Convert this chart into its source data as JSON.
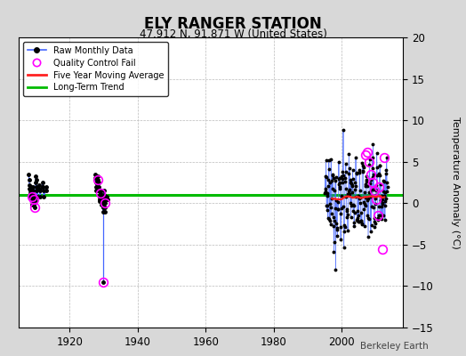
{
  "title": "ELY RANGER STATION",
  "subtitle": "47.912 N, 91.871 W (United States)",
  "ylabel": "Temperature Anomaly (°C)",
  "credit": "Berkeley Earth",
  "background_color": "#d8d8d8",
  "plot_bg_color": "#ffffff",
  "grid_color": "#bbbbbb",
  "xlim": [
    1905,
    2018
  ],
  "ylim": [
    -15,
    20
  ],
  "yticks": [
    -15,
    -10,
    -5,
    0,
    5,
    10,
    15,
    20
  ],
  "xticks": [
    1920,
    1940,
    1960,
    1980,
    2000
  ],
  "long_term_trend_y": 1.0,
  "colors": {
    "raw_line": "#4466ff",
    "raw_dot": "#000000",
    "qc_circle": "#ff00ff",
    "moving_avg": "#ff2222",
    "long_trend": "#00bb00"
  },
  "p1_years": [
    1908.0,
    1908.083,
    1908.167,
    1908.25,
    1908.333,
    1908.417,
    1908.5,
    1908.583,
    1908.667,
    1908.75,
    1908.833,
    1908.917,
    1909.0,
    1909.083,
    1909.167,
    1909.25,
    1909.333,
    1909.417,
    1909.5,
    1909.583,
    1909.667,
    1909.75,
    1909.833,
    1909.917,
    1910.0,
    1910.083,
    1910.167,
    1910.25,
    1910.333,
    1910.417,
    1911.0,
    1911.083,
    1911.167,
    1911.25,
    1912.0,
    1912.083,
    1912.167,
    1912.25,
    1912.333,
    1913.0,
    1913.083
  ],
  "p1_vals": [
    3.5,
    2.8,
    2.2,
    1.8,
    1.2,
    0.8,
    1.5,
    2.0,
    1.5,
    0.5,
    -0.2,
    0.3,
    1.5,
    2.0,
    1.5,
    0.8,
    0.5,
    -0.2,
    0.5,
    1.0,
    0.5,
    0.2,
    -0.5,
    0.2,
    2.5,
    3.2,
    2.8,
    2.0,
    1.5,
    0.8,
    1.8,
    2.2,
    1.5,
    0.8,
    2.0,
    2.5,
    2.0,
    1.5,
    0.8,
    1.5,
    2.0
  ],
  "p1_qc_years": [
    1908.833,
    1909.583,
    1909.833
  ],
  "p1_qc_vals": [
    0.8,
    0.5,
    -0.5
  ],
  "p2_years": [
    1927.5,
    1927.583,
    1927.667,
    1927.75,
    1927.833,
    1927.917,
    1928.0,
    1928.083,
    1928.167,
    1928.25,
    1928.333,
    1928.417,
    1928.5,
    1928.583,
    1928.667,
    1928.75,
    1928.833,
    1928.917,
    1929.0,
    1929.083,
    1929.167,
    1929.25,
    1929.333,
    1929.417,
    1929.5,
    1929.583,
    1929.667,
    1929.75,
    1929.833,
    1929.917,
    1930.0,
    1930.083,
    1930.167,
    1930.25,
    1930.333,
    1930.417,
    1930.5,
    1931.0,
    1931.083
  ],
  "p2_vals": [
    3.5,
    3.0,
    2.5,
    2.0,
    1.5,
    2.0,
    2.5,
    2.0,
    1.5,
    2.8,
    3.2,
    2.5,
    2.0,
    1.5,
    1.0,
    0.5,
    0.2,
    0.8,
    1.5,
    1.2,
    0.8,
    0.5,
    0.2,
    -0.2,
    0.5,
    0.8,
    0.5,
    0.0,
    -0.5,
    -1.0,
    1.5,
    1.0,
    0.5,
    0.0,
    -0.5,
    -1.0,
    0.5,
    0.8,
    0.5
  ],
  "p2_qc_years": [
    1928.25,
    1929.083,
    1929.917,
    1930.25
  ],
  "p2_qc_vals": [
    2.8,
    1.2,
    -9.5,
    0.0
  ],
  "p2_outlier_year": 1929.917,
  "p2_outlier_connect_val": -1.0,
  "p2_outlier_val": -9.5
}
